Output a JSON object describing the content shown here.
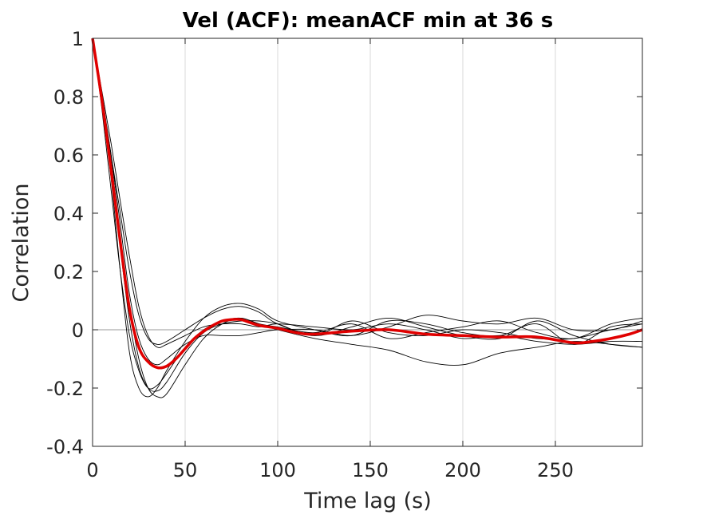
{
  "chart_data": {
    "type": "line",
    "title": "Vel (ACF): meanACF min at 36 s",
    "xlabel": "Time lag (s)",
    "ylabel": "Correlation",
    "xlim": [
      0,
      297
    ],
    "ylim": [
      -0.4,
      1
    ],
    "xticks": [
      "0",
      "50",
      "100",
      "150",
      "200",
      "250"
    ],
    "xtick_values": [
      0,
      50,
      100,
      150,
      200,
      250
    ],
    "yticks": [
      "1",
      "0.8",
      "0.6",
      "0.4",
      "0.2",
      "0",
      "-0.2",
      "-0.4"
    ],
    "ytick_values": [
      1,
      0.8,
      0.6,
      0.4,
      0.2,
      0,
      -0.2,
      -0.4
    ],
    "grid": "vertical",
    "reference_line_y": 0,
    "colors": {
      "individual": "#000000",
      "mean": "#e00000",
      "grid": "#d9d9d9",
      "axis": "#262626"
    },
    "series": [
      {
        "x": [
          0,
          5,
          10,
          15,
          20,
          25,
          30,
          35,
          40,
          50,
          60,
          70,
          80,
          90,
          100,
          120,
          140,
          160,
          180,
          200,
          220,
          240,
          260,
          280,
          297
        ],
        "y": [
          1,
          0.78,
          0.52,
          0.2,
          -0.08,
          -0.2,
          -0.23,
          -0.2,
          -0.14,
          -0.04,
          0.04,
          0.08,
          0.09,
          0.07,
          0.03,
          0.0,
          -0.02,
          0.03,
          0.02,
          -0.01,
          -0.02,
          0.02,
          -0.05,
          0.01,
          0.02
        ]
      },
      {
        "x": [
          0,
          5,
          10,
          15,
          20,
          25,
          30,
          35,
          40,
          50,
          60,
          70,
          80,
          90,
          100,
          120,
          140,
          160,
          180,
          200,
          220,
          240,
          260,
          280,
          297
        ],
        "y": [
          1,
          0.8,
          0.58,
          0.32,
          0.08,
          -0.1,
          -0.2,
          -0.23,
          -0.22,
          -0.12,
          -0.03,
          0.02,
          0.04,
          0.02,
          0.01,
          -0.01,
          0.02,
          -0.03,
          -0.01,
          0.01,
          0.03,
          -0.01,
          -0.03,
          0.02,
          0.04
        ]
      },
      {
        "x": [
          0,
          5,
          10,
          15,
          20,
          25,
          30,
          35,
          40,
          50,
          60,
          70,
          80,
          90,
          100,
          120,
          140,
          160,
          180,
          200,
          220,
          240,
          260,
          280,
          297
        ],
        "y": [
          1,
          0.8,
          0.6,
          0.4,
          0.2,
          0.05,
          -0.03,
          -0.05,
          -0.04,
          0.0,
          0.04,
          0.07,
          0.08,
          0.06,
          0.02,
          -0.02,
          0.01,
          0.04,
          0.01,
          -0.02,
          -0.03,
          0.03,
          -0.02,
          -0.05,
          -0.06
        ]
      },
      {
        "x": [
          0,
          5,
          10,
          15,
          20,
          25,
          30,
          35,
          40,
          50,
          60,
          70,
          80,
          90,
          100,
          120,
          140,
          160,
          180,
          200,
          220,
          240,
          260,
          280,
          297
        ],
        "y": [
          1,
          0.82,
          0.64,
          0.44,
          0.25,
          0.08,
          -0.02,
          -0.06,
          -0.05,
          -0.02,
          0.01,
          0.02,
          0.02,
          0.01,
          0.02,
          0.01,
          0.0,
          0.02,
          0.0,
          -0.03,
          -0.02,
          -0.04,
          -0.05,
          -0.04,
          -0.04
        ]
      },
      {
        "x": [
          0,
          5,
          10,
          15,
          20,
          25,
          30,
          35,
          40,
          50,
          60,
          70,
          80,
          90,
          100,
          120,
          140,
          160,
          180,
          200,
          220,
          240,
          260,
          280,
          297
        ],
        "y": [
          1,
          0.76,
          0.48,
          0.2,
          -0.02,
          -0.14,
          -0.2,
          -0.19,
          -0.15,
          -0.06,
          0.0,
          0.03,
          0.04,
          0.02,
          0.0,
          -0.03,
          -0.05,
          -0.07,
          -0.11,
          -0.12,
          -0.08,
          -0.06,
          -0.04,
          -0.05,
          -0.06
        ]
      },
      {
        "x": [
          0,
          5,
          10,
          15,
          20,
          25,
          30,
          35,
          40,
          50,
          60,
          70,
          80,
          90,
          100,
          120,
          140,
          160,
          180,
          200,
          220,
          240,
          260,
          280,
          297
        ],
        "y": [
          1,
          0.79,
          0.55,
          0.28,
          0.03,
          -0.13,
          -0.2,
          -0.21,
          -0.18,
          -0.08,
          -0.01,
          0.02,
          0.03,
          0.03,
          0.02,
          -0.02,
          0.03,
          -0.01,
          -0.02,
          0.0,
          -0.01,
          -0.03,
          -0.03,
          0.0,
          0.02
        ]
      },
      {
        "x": [
          0,
          5,
          10,
          15,
          20,
          25,
          30,
          35,
          40,
          50,
          60,
          70,
          80,
          90,
          100,
          120,
          140,
          160,
          180,
          200,
          220,
          240,
          260,
          280,
          297
        ],
        "y": [
          1,
          0.81,
          0.6,
          0.36,
          0.12,
          -0.03,
          -0.1,
          -0.12,
          -0.1,
          -0.05,
          -0.02,
          -0.02,
          -0.02,
          -0.01,
          0.0,
          0.0,
          -0.02,
          0.01,
          0.05,
          0.03,
          0.02,
          0.04,
          0.0,
          0.0,
          0.03
        ]
      },
      {
        "x": [
          0,
          5,
          10,
          15,
          20,
          25,
          30,
          35,
          40,
          45,
          50,
          55,
          60,
          65,
          70,
          75,
          80,
          85,
          90,
          100,
          110,
          120,
          140,
          160,
          180,
          200,
          220,
          240,
          260,
          270,
          280,
          290,
          297
        ],
        "y": [
          1,
          0.79,
          0.55,
          0.3,
          0.07,
          -0.06,
          -0.11,
          -0.13,
          -0.125,
          -0.1,
          -0.065,
          -0.03,
          -0.005,
          0.015,
          0.03,
          0.035,
          0.035,
          0.025,
          0.015,
          0.005,
          -0.01,
          -0.015,
          -0.005,
          0.0,
          -0.015,
          -0.02,
          -0.025,
          -0.025,
          -0.045,
          -0.04,
          -0.03,
          -0.015,
          0.0
        ],
        "color": "#e00000",
        "width": 3.5
      }
    ]
  }
}
